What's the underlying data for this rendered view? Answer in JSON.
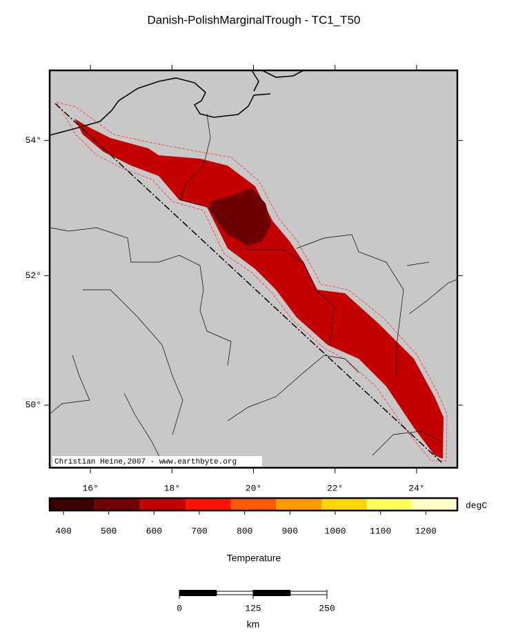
{
  "title": "Danish-PolishMarginalTrough - TC1_T50",
  "map": {
    "extent": {
      "lon": [
        15,
        25
      ],
      "lat": [
        49,
        55
      ]
    },
    "lon_ticks": [
      {
        "value": 16,
        "label": "16°"
      },
      {
        "value": 18,
        "label": "18°"
      },
      {
        "value": 20,
        "label": "20°"
      },
      {
        "value": 22,
        "label": "22°"
      },
      {
        "value": 24,
        "label": "24°"
      }
    ],
    "lat_ticks": [
      {
        "value": 50,
        "label": "50°"
      },
      {
        "value": 52,
        "label": "52°"
      },
      {
        "value": 54,
        "label": "54°"
      }
    ],
    "credit": "Christian Heine,2007 - www.earthbyte.org"
  },
  "colorbar": {
    "title": "Temperature",
    "unit": "degC",
    "colors": [
      "#3a0000",
      "#740000",
      "#c40000",
      "#ff1200",
      "#ff5a00",
      "#ff9a00",
      "#ffd600",
      "#ffff5a",
      "#ffffc8"
    ],
    "ticks": [
      400,
      500,
      600,
      700,
      800,
      900,
      1000,
      1100,
      1200
    ]
  },
  "scalebar": {
    "ticks": [
      0,
      125,
      250
    ],
    "unit": "km"
  }
}
